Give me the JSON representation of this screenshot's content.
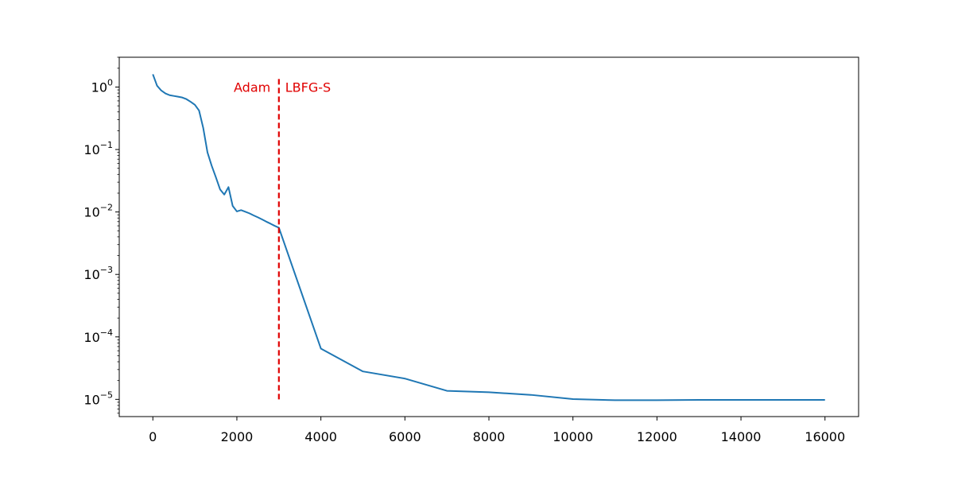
{
  "chart_data": {
    "type": "line",
    "title": "",
    "xlabel": "",
    "ylabel": "",
    "xlim": [
      -800,
      16800
    ],
    "ylim": [
      5.3e-06,
      3.0
    ],
    "yscale": "log",
    "grid": false,
    "xticks": [
      0,
      2000,
      4000,
      6000,
      8000,
      10000,
      12000,
      14000,
      16000
    ],
    "xtick_labels": [
      "0",
      "2000",
      "4000",
      "6000",
      "8000",
      "10000",
      "12000",
      "14000",
      "16000"
    ],
    "yticks": [
      1,
      0.1,
      0.01,
      0.001,
      0.0001,
      1e-05
    ],
    "ytick_labels": [
      {
        "base": "10",
        "exp": "0"
      },
      {
        "base": "10",
        "exp": "−1"
      },
      {
        "base": "10",
        "exp": "−2"
      },
      {
        "base": "10",
        "exp": "−3"
      },
      {
        "base": "10",
        "exp": "−4"
      },
      {
        "base": "10",
        "exp": "−5"
      }
    ],
    "series": [
      {
        "color": "#1f77b4",
        "x": [
          0,
          100,
          200,
          300,
          400,
          500,
          600,
          700,
          800,
          900,
          1000,
          1100,
          1200,
          1300,
          1400,
          1500,
          1600,
          1700,
          1800,
          1900,
          2000,
          2100,
          2200,
          2300,
          2400,
          2500,
          2600,
          2700,
          2800,
          2900,
          3000,
          4000,
          5000,
          6000,
          7000,
          8000,
          9000,
          10000,
          11000,
          12000,
          13000,
          14000,
          15000,
          16000
        ],
        "y": [
          1.6,
          1.05,
          0.88,
          0.79,
          0.74,
          0.72,
          0.7,
          0.68,
          0.64,
          0.58,
          0.52,
          0.42,
          0.22,
          0.09,
          0.055,
          0.036,
          0.023,
          0.019,
          0.025,
          0.0125,
          0.0102,
          0.0107,
          0.0101,
          0.0095,
          0.0088,
          0.0082,
          0.0076,
          0.007,
          0.0065,
          0.006,
          0.0056,
          6.5e-05,
          2.8e-05,
          2.15e-05,
          1.37e-05,
          1.3e-05,
          1.18e-05,
          1.01e-05,
          9.7e-06,
          9.7e-06,
          9.8e-06,
          9.8e-06,
          9.8e-06,
          9.8e-06
        ]
      }
    ],
    "vline": {
      "x": 3000,
      "y_from": 1e-05,
      "y_to": 1.5,
      "color": "#e00000",
      "style": "dashed"
    },
    "annotations": [
      {
        "text": "Adam",
        "x": 2800,
        "y": 1.0,
        "align": "end",
        "color": "#e00000"
      },
      {
        "text": "LBFG-S",
        "x": 3150,
        "y": 1.0,
        "align": "start",
        "color": "#e00000"
      }
    ]
  }
}
